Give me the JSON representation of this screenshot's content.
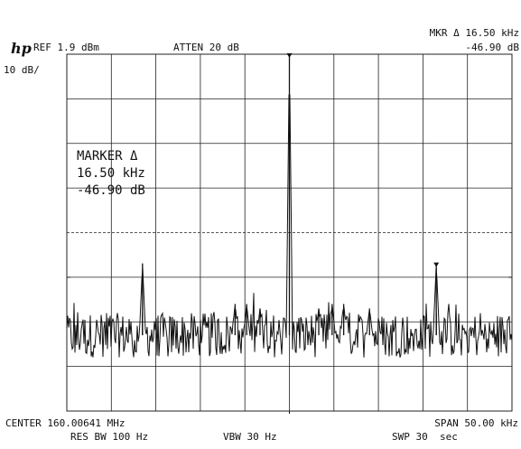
{
  "logo_text": "hp",
  "header": {
    "ref": "REF 1.9 dBm",
    "atten": "ATTEN 20 dB",
    "mkr_line1": "MKR Δ 16.50 kHz",
    "mkr_line2": "-46.90 dB",
    "scale": "10 dB/"
  },
  "marker_box": {
    "title": "MARKER Δ",
    "freq": "16.50 kHz",
    "level": "-46.90 dB"
  },
  "footer": {
    "center": "CENTER 160.00641 MHz",
    "res_bw": "RES BW 100 Hz",
    "vbw": "VBW 30 Hz",
    "span": "SPAN 50.00 kHz",
    "swp": "SWP 30  sec"
  },
  "colors": {
    "trace": "#111111",
    "grid": "#222222"
  },
  "chart_data": {
    "type": "line",
    "title": "",
    "xlabel": "",
    "ylabel": "",
    "x_unit": "kHz offset from center",
    "xlim": [
      -25,
      25
    ],
    "ylim_dB_below_ref": [
      -80,
      0
    ],
    "grid": true,
    "divisions": {
      "x": 10,
      "y": 8
    },
    "noise_floor_dB": -63,
    "noise_spread_dB": 5,
    "peaks": [
      {
        "x": 0.0,
        "y": 0.0,
        "label": "carrier"
      },
      {
        "x": -16.5,
        "y": -46.9,
        "label": "marker reference"
      },
      {
        "x": 16.5,
        "y": -46.9,
        "label": "delta marker"
      },
      {
        "x": -6.1,
        "y": -56
      },
      {
        "x": -4.8,
        "y": -56
      },
      {
        "x": -3.3,
        "y": -57
      },
      {
        "x": 3.3,
        "y": -57
      },
      {
        "x": 4.8,
        "y": -56
      },
      {
        "x": 6.1,
        "y": -56
      },
      {
        "x": 9.0,
        "y": -57
      },
      {
        "x": -16.5,
        "y": -58,
        "label": "sideband"
      },
      {
        "x": 16.5,
        "y": -58,
        "label": "sideband"
      }
    ]
  }
}
